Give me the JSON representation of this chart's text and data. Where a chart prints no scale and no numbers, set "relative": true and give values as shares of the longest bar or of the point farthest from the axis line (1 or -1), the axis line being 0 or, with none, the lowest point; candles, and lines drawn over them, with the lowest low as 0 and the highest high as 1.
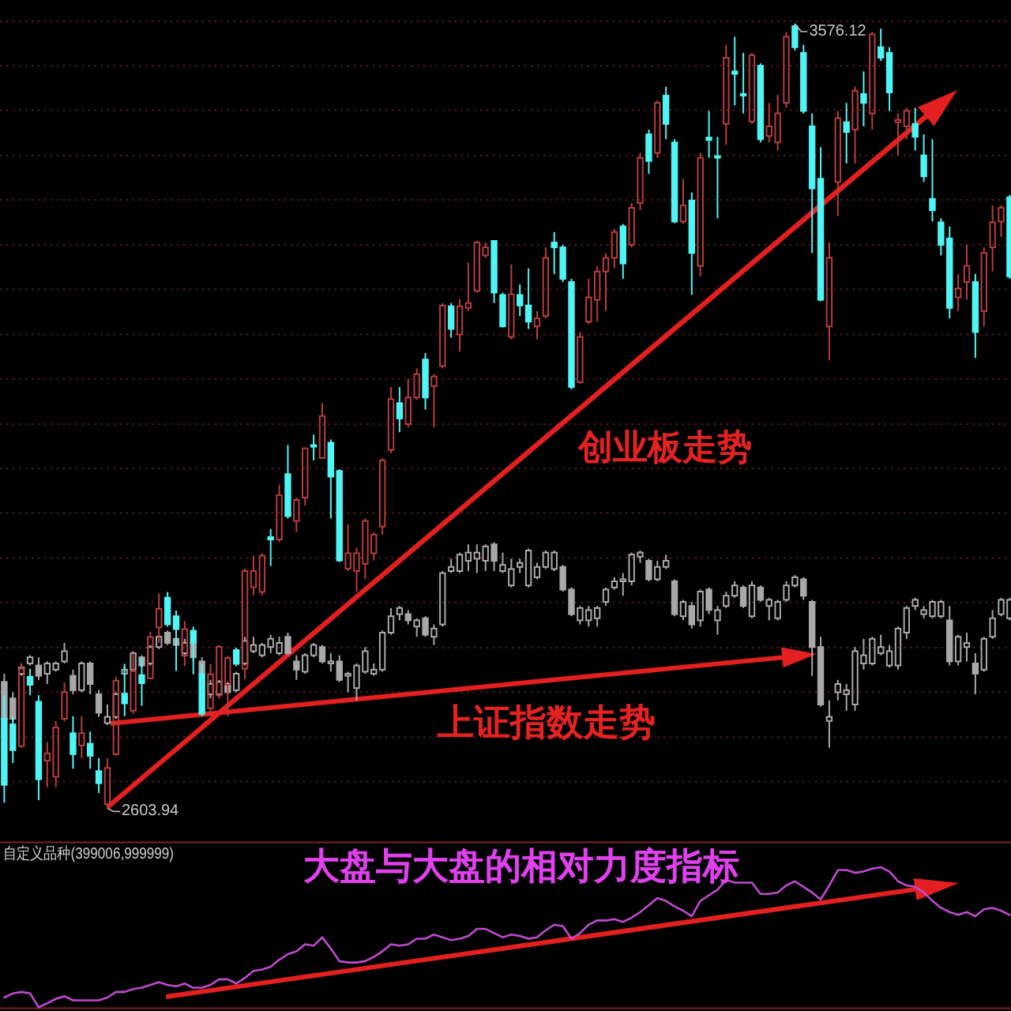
{
  "chart_data": [
    {
      "type": "candlestick",
      "categories": [
        null,
        null,
        null,
        null,
        null,
        null,
        null,
        null,
        null,
        null,
        null,
        null,
        null,
        null,
        null,
        null,
        null,
        null,
        null,
        null,
        null,
        null,
        null,
        null,
        null,
        null,
        null,
        null,
        null,
        null,
        null,
        null,
        null,
        null,
        null,
        null,
        null,
        null,
        null,
        null,
        null,
        null,
        null,
        null,
        null,
        null,
        null,
        null,
        null,
        null,
        null,
        null,
        null,
        null,
        null,
        null,
        null,
        null,
        null,
        null,
        null,
        null,
        null,
        null,
        null,
        null,
        null,
        null,
        null,
        null,
        null,
        null,
        null,
        null,
        null,
        null,
        null,
        null,
        null,
        null,
        null,
        null,
        null,
        null,
        null,
        null,
        null,
        null,
        null,
        null,
        null,
        null,
        null,
        null,
        null,
        null,
        null,
        null,
        null,
        null,
        null,
        null,
        null,
        null,
        null,
        null,
        null,
        null,
        null,
        null,
        null,
        null,
        null,
        null,
        null,
        null,
        null,
        null
      ],
      "ohlc": [
        [
          2715,
          2744,
          2611,
          2633
        ],
        [
          2708,
          2718,
          2660,
          2676
        ],
        [
          2681,
          2783,
          2679,
          2777
        ],
        [
          2767,
          2777,
          2744,
          2757
        ],
        [
          2736,
          2744,
          2614,
          2640
        ],
        [
          2663,
          2686,
          2630,
          2672
        ],
        [
          2643,
          2712,
          2630,
          2704
        ],
        [
          2715,
          2760,
          2712,
          2748
        ],
        [
          2697,
          2718,
          2653,
          2671
        ],
        [
          2682,
          2718,
          2666,
          2697
        ],
        [
          2684,
          2699,
          2653,
          2669
        ],
        [
          2650,
          2666,
          2623,
          2635
        ],
        [
          2609,
          2666,
          2603.94,
          2654
        ],
        [
          2671,
          2767,
          2669,
          2762
        ],
        [
          2746,
          2783,
          2718,
          2734
        ],
        [
          2725,
          2796,
          2721,
          2774
        ],
        [
          2769,
          2790,
          2731,
          2759
        ],
        [
          2765,
          2823,
          2764,
          2816
        ],
        [
          2828,
          2870,
          2809,
          2851
        ],
        [
          2865,
          2872,
          2829,
          2832
        ],
        [
          2842,
          2849,
          2774,
          2826
        ],
        [
          2793,
          2836,
          2780,
          2826
        ],
        [
          2824,
          2829,
          2770,
          2809
        ],
        [
          2770,
          2783,
          2718,
          2721
        ],
        [
          2728,
          2783,
          2718,
          2770
        ],
        [
          2744,
          2806,
          2740,
          2804
        ],
        [
          2757,
          2793,
          2718,
          2790
        ],
        [
          2800,
          2803,
          2780,
          2783
        ],
        [
          2777,
          2901,
          2764,
          2898
        ],
        [
          2878,
          2917,
          2868,
          2898
        ],
        [
          2872,
          2920,
          2868,
          2917
        ],
        [
          2940,
          2950,
          2904,
          2937
        ],
        [
          2937,
          3005,
          2934,
          2992
        ],
        [
          3018,
          3054,
          2963,
          2966
        ],
        [
          2960,
          2989,
          2946,
          2986
        ],
        [
          2989,
          3051,
          2979,
          3050
        ],
        [
          3054,
          3067,
          3035,
          3052
        ],
        [
          3038,
          3106,
          3037,
          3090
        ],
        [
          3057,
          3061,
          2963,
          3015
        ],
        [
          3022,
          3024,
          2909,
          2911
        ],
        [
          2901,
          2956,
          2898,
          2920
        ],
        [
          2898,
          2927,
          2872,
          2920
        ],
        [
          2907,
          2963,
          2888,
          2960
        ],
        [
          2920,
          2946,
          2911,
          2943
        ],
        [
          2953,
          3038,
          2943,
          3035
        ],
        [
          3048,
          3126,
          3044,
          3111
        ],
        [
          3106,
          3126,
          3070,
          3087
        ],
        [
          3080,
          3136,
          3076,
          3113
        ],
        [
          3113,
          3149,
          3110,
          3142
        ],
        [
          3160,
          3168,
          3098,
          3113
        ],
        [
          3127,
          3142,
          3076,
          3139
        ],
        [
          3152,
          3230,
          3149,
          3227
        ],
        [
          3226,
          3230,
          3187,
          3198
        ],
        [
          3191,
          3235,
          3170,
          3226
        ],
        [
          3224,
          3280,
          3220,
          3230
        ],
        [
          3245,
          3307,
          3243,
          3305
        ],
        [
          3289,
          3305,
          3286,
          3299
        ],
        [
          3307,
          3308,
          3230,
          3243
        ],
        [
          3240,
          3243,
          3200,
          3201
        ],
        [
          3188,
          3278,
          3185,
          3241
        ],
        [
          3240,
          3253,
          3214,
          3227
        ],
        [
          3227,
          3273,
          3198,
          3207
        ],
        [
          3201,
          3220,
          3185,
          3211
        ],
        [
          3214,
          3299,
          3211,
          3286
        ],
        [
          3305,
          3318,
          3266,
          3299
        ],
        [
          3299,
          3302,
          3256,
          3260
        ],
        [
          3256,
          3260,
          3123,
          3126
        ],
        [
          3132,
          3194,
          3130,
          3188
        ],
        [
          3207,
          3260,
          3204,
          3237
        ],
        [
          3234,
          3276,
          3207,
          3269
        ],
        [
          3269,
          3292,
          3220,
          3286
        ],
        [
          3286,
          3322,
          3273,
          3318
        ],
        [
          3325,
          3328,
          3260,
          3279
        ],
        [
          3302,
          3354,
          3299,
          3348
        ],
        [
          3354,
          3416,
          3345,
          3410
        ],
        [
          3439,
          3445,
          3390,
          3406
        ],
        [
          3416,
          3481,
          3410,
          3478
        ],
        [
          3487,
          3498,
          3433,
          3452
        ],
        [
          3429,
          3433,
          3329,
          3331
        ],
        [
          3331,
          3384,
          3328,
          3351
        ],
        [
          3357,
          3367,
          3240,
          3292
        ],
        [
          3276,
          3416,
          3263,
          3410
        ],
        [
          3435,
          3468,
          3410,
          3432
        ],
        [
          3412,
          3436,
          3335,
          3410
        ],
        [
          3452,
          3550,
          3426,
          3534
        ],
        [
          3517,
          3560,
          3475,
          3514
        ],
        [
          3489,
          3540,
          3465,
          3487
        ],
        [
          3455,
          3540,
          3452,
          3537
        ],
        [
          3524,
          3527,
          3429,
          3433
        ],
        [
          3437,
          3478,
          3429,
          3449
        ],
        [
          3429,
          3488,
          3419,
          3465
        ],
        [
          3478,
          3566,
          3472,
          3560
        ],
        [
          3573,
          3576.12,
          3543,
          3547
        ],
        [
          3540,
          3550,
          3465,
          3468
        ],
        [
          3449,
          3465,
          3292,
          3372
        ],
        [
          3384,
          3423,
          3232,
          3234
        ],
        [
          3201,
          3305,
          3159,
          3286
        ],
        [
          3380,
          3468,
          3338,
          3459
        ],
        [
          3454,
          3478,
          3403,
          3442
        ],
        [
          3445,
          3498,
          3403,
          3493
        ],
        [
          3489,
          3517,
          3449,
          3478
        ],
        [
          3465,
          3566,
          3445,
          3563
        ],
        [
          3547,
          3570,
          3530,
          3534
        ],
        [
          3540,
          3547,
          3468,
          3491
        ],
        [
          3454,
          3465,
          3413,
          3457
        ],
        [
          3449,
          3472,
          3433,
          3468
        ],
        [
          3452,
          3472,
          3419,
          3436
        ],
        [
          3413,
          3439,
          3380,
          3387
        ],
        [
          3359,
          3433,
          3331,
          3345
        ],
        [
          3330,
          3335,
          3289,
          3302
        ],
        [
          3310,
          3325,
          3211,
          3224
        ],
        [
          3237,
          3266,
          3220,
          3248
        ],
        [
          3256,
          3302,
          3234,
          3276
        ],
        [
          3256,
          3266,
          3162,
          3194
        ],
        [
          3220,
          3299,
          3201,
          3292
        ],
        [
          3299,
          3351,
          3269,
          3330
        ],
        [
          3331,
          3351,
          3312,
          3348
        ],
        [
          3361,
          3364,
          3260,
          3263
        ]
      ],
      "colors": [
        "#4ff5f5",
        "#4ff5f5",
        "#b83c3c",
        "#4ff5f5",
        "#4ff5f5",
        "#b83c3c",
        "#b83c3c",
        "#b83c3c",
        "#4ff5f5",
        "#b83c3c",
        "#4ff5f5",
        "#4ff5f5",
        "#b83c3c",
        "#b83c3c",
        "#4ff5f5",
        "#b83c3c",
        "#4ff5f5",
        "#b83c3c",
        "#b83c3c",
        "#4ff5f5",
        "#4ff5f5",
        "#b83c3c",
        "#4ff5f5",
        "#4ff5f5",
        "#b83c3c",
        "#b83c3c",
        "#b83c3c",
        "#4ff5f5",
        "#b83c3c",
        "#b83c3c",
        "#b83c3c",
        "#4ff5f5",
        "#b83c3c",
        "#4ff5f5",
        "#b83c3c",
        "#b83c3c",
        "#4ff5f5",
        "#b83c3c",
        "#4ff5f5",
        "#4ff5f5",
        "#b83c3c",
        "#b83c3c",
        "#b83c3c",
        "#b83c3c",
        "#b83c3c",
        "#b83c3c",
        "#4ff5f5",
        "#b83c3c",
        "#b83c3c",
        "#4ff5f5",
        "#b83c3c",
        "#b83c3c",
        "#4ff5f5",
        "#b83c3c",
        "#b83c3c",
        "#b83c3c",
        "#b83c3c",
        "#4ff5f5",
        "#4ff5f5",
        "#b83c3c",
        "#4ff5f5",
        "#4ff5f5",
        "#b83c3c",
        "#b83c3c",
        "#4ff5f5",
        "#4ff5f5",
        "#4ff5f5",
        "#b83c3c",
        "#b83c3c",
        "#b83c3c",
        "#b83c3c",
        "#b83c3c",
        "#4ff5f5",
        "#b83c3c",
        "#b83c3c",
        "#4ff5f5",
        "#b83c3c",
        "#4ff5f5",
        "#4ff5f5",
        "#b83c3c",
        "#4ff5f5",
        "#b83c3c",
        "#4ff5f5",
        "#4ff5f5",
        "#b83c3c",
        "#4ff5f5",
        "#4ff5f5",
        "#b83c3c",
        "#4ff5f5",
        "#b83c3c",
        "#b83c3c",
        "#b83c3c",
        "#4ff5f5",
        "#4ff5f5",
        "#4ff5f5",
        "#4ff5f5",
        "#b83c3c",
        "#b83c3c",
        "#4ff5f5",
        "#b83c3c",
        "#4ff5f5",
        "#b83c3c",
        "#4ff5f5",
        "#4ff5f5",
        "#b83c3c",
        "#b83c3c",
        "#4ff5f5",
        "#4ff5f5",
        "#4ff5f5",
        "#4ff5f5",
        "#4ff5f5",
        "#b83c3c",
        "#b83c3c",
        "#4ff5f5",
        "#b83c3c",
        "#b83c3c",
        "#b83c3c",
        "#4ff5f5"
      ],
      "yticks": [
        {
          "value": 3579,
          "label": null
        },
        {
          "value": 3524,
          "label": null
        },
        {
          "value": 3469,
          "label": null
        },
        {
          "value": 3413,
          "label": null
        },
        {
          "value": 3358,
          "label": null
        },
        {
          "value": 3302,
          "label": null
        },
        {
          "value": 3247,
          "label": null
        },
        {
          "value": 3191,
          "label": null
        },
        {
          "value": 3136,
          "label": null
        },
        {
          "value": 3080,
          "label": null
        },
        {
          "value": 3025,
          "label": null
        },
        {
          "value": 2970,
          "label": null
        },
        {
          "value": 2914,
          "label": null
        },
        {
          "value": 2859,
          "label": null
        },
        {
          "value": 2803,
          "label": null
        },
        {
          "value": 2748,
          "label": null
        },
        {
          "value": 2692,
          "label": null
        },
        {
          "value": 2637,
          "label": null
        }
      ],
      "grid": true,
      "annotations": [
        "创业板走势",
        "3576.12",
        "2603.94"
      ]
    },
    {
      "type": "candlestick",
      "relative": true,
      "categories": [
        null,
        null,
        null,
        null,
        null,
        null,
        null,
        null,
        null,
        null,
        null,
        null,
        null,
        null,
        null,
        null,
        null,
        null,
        null,
        null,
        null,
        null,
        null,
        null,
        null,
        null,
        null,
        null,
        null,
        null,
        null,
        null,
        null,
        null,
        null,
        null,
        null,
        null,
        null,
        null,
        null,
        null,
        null,
        null,
        null,
        null,
        null,
        null,
        null,
        null,
        null,
        null,
        null,
        null,
        null,
        null,
        null,
        null,
        null,
        null,
        null,
        null,
        null,
        null,
        null,
        null,
        null,
        null,
        null,
        null,
        null,
        null,
        null,
        null,
        null,
        null,
        null,
        null,
        null,
        null,
        null,
        null,
        null,
        null,
        null,
        null,
        null,
        null,
        null,
        null,
        null,
        null,
        null,
        null,
        null,
        null,
        null,
        null,
        null,
        null,
        null,
        null,
        null,
        null,
        null,
        null,
        null,
        null,
        null,
        null,
        null,
        null,
        null,
        null,
        null,
        null,
        null,
        null
      ],
      "ohlc": [
        [
          0.32,
          0.36,
          0.13,
          0.14
        ],
        [
          0.24,
          0.27,
          0.13,
          0.14
        ],
        [
          0.36,
          0.41,
          0.35,
          0.39
        ],
        [
          0.41,
          0.45,
          0.4,
          0.44
        ],
        [
          0.4,
          0.44,
          0.33,
          0.35
        ],
        [
          0.36,
          0.42,
          0.31,
          0.41
        ],
        [
          0.38,
          0.42,
          0.37,
          0.41
        ],
        [
          0.42,
          0.51,
          0.41,
          0.47
        ],
        [
          0.35,
          0.38,
          0.26,
          0.28
        ],
        [
          0.28,
          0.42,
          0.27,
          0.41
        ],
        [
          0.41,
          0.42,
          0.26,
          0.31
        ],
        [
          0.26,
          0.28,
          0.15,
          0.17
        ],
        [
          0.12,
          0.21,
          0.11,
          0.15
        ],
        [
          0.15,
          0.27,
          0.14,
          0.26
        ],
        [
          0.36,
          0.4,
          0.35,
          0.38
        ],
        [
          0.38,
          0.47,
          0.37,
          0.46
        ],
        [
          0.44,
          0.45,
          0.39,
          0.4
        ],
        [
          0.41,
          0.5,
          0.4,
          0.49
        ],
        [
          0.49,
          0.55,
          0.48,
          0.54
        ],
        [
          0.56,
          0.57,
          0.5,
          0.51
        ],
        [
          0.53,
          0.54,
          0.49,
          0.5
        ],
        [
          0.46,
          0.53,
          0.45,
          0.51
        ],
        [
          0.51,
          0.53,
          0.42,
          0.44
        ],
        [
          0.42,
          0.44,
          0.35,
          0.36
        ],
        [
          0.26,
          0.33,
          0.24,
          0.31
        ],
        [
          0.26,
          0.33,
          0.25,
          0.32
        ],
        [
          0.31,
          0.32,
          0.26,
          0.27
        ],
        [
          0.28,
          0.37,
          0.27,
          0.36
        ],
        [
          0.41,
          0.54,
          0.4,
          0.52
        ],
        [
          0.47,
          0.54,
          0.46,
          0.5
        ],
        [
          0.45,
          0.51,
          0.44,
          0.5
        ],
        [
          0.49,
          0.55,
          0.46,
          0.53
        ],
        [
          0.46,
          0.54,
          0.45,
          0.51
        ],
        [
          0.54,
          0.56,
          0.45,
          0.46
        ],
        [
          0.42,
          0.45,
          0.33,
          0.38
        ],
        [
          0.37,
          0.46,
          0.36,
          0.45
        ],
        [
          0.45,
          0.51,
          0.44,
          0.5
        ],
        [
          0.49,
          0.5,
          0.41,
          0.42
        ],
        [
          0.41,
          0.46,
          0.37,
          0.42
        ],
        [
          0.42,
          0.45,
          0.32,
          0.33
        ],
        [
          0.35,
          0.37,
          0.27,
          0.36
        ],
        [
          0.29,
          0.41,
          0.23,
          0.4
        ],
        [
          0.37,
          0.49,
          0.36,
          0.47
        ],
        [
          0.36,
          0.41,
          0.35,
          0.38
        ],
        [
          0.38,
          0.57,
          0.37,
          0.56
        ],
        [
          0.56,
          0.68,
          0.55,
          0.64
        ],
        [
          0.65,
          0.69,
          0.62,
          0.68
        ],
        [
          0.65,
          0.67,
          0.6,
          0.62
        ],
        [
          0.59,
          0.63,
          0.54,
          0.62
        ],
        [
          0.63,
          0.64,
          0.54,
          0.55
        ],
        [
          0.54,
          0.6,
          0.5,
          0.58
        ],
        [
          0.6,
          0.86,
          0.59,
          0.85
        ],
        [
          0.86,
          0.92,
          0.85,
          0.88
        ],
        [
          0.86,
          0.95,
          0.85,
          0.94
        ],
        [
          0.91,
          0.99,
          0.86,
          0.95
        ],
        [
          0.92,
          0.99,
          0.85,
          0.95
        ],
        [
          0.91,
          0.99,
          0.86,
          0.98
        ],
        [
          0.99,
          1,
          0.86,
          0.91
        ],
        [
          0.86,
          0.95,
          0.85,
          0.89
        ],
        [
          0.79,
          0.92,
          0.78,
          0.87
        ],
        [
          0.88,
          0.92,
          0.85,
          0.9
        ],
        [
          0.79,
          0.97,
          0.78,
          0.96
        ],
        [
          0.83,
          0.9,
          0.82,
          0.88
        ],
        [
          0.88,
          0.96,
          0.87,
          0.95
        ],
        [
          0.87,
          0.96,
          0.86,
          0.95
        ],
        [
          0.88,
          0.89,
          0.76,
          0.77
        ],
        [
          0.77,
          0.78,
          0.64,
          0.65
        ],
        [
          0.62,
          0.69,
          0.6,
          0.68
        ],
        [
          0.62,
          0.69,
          0.59,
          0.67
        ],
        [
          0.63,
          0.69,
          0.59,
          0.68
        ],
        [
          0.71,
          0.78,
          0.69,
          0.77
        ],
        [
          0.78,
          0.83,
          0.77,
          0.81
        ],
        [
          0.81,
          0.85,
          0.74,
          0.82
        ],
        [
          0.81,
          0.95,
          0.79,
          0.94
        ],
        [
          0.93,
          0.96,
          0.9,
          0.95
        ],
        [
          0.91,
          0.92,
          0.81,
          0.82
        ],
        [
          0.82,
          0.91,
          0.81,
          0.88
        ],
        [
          0.88,
          0.94,
          0.87,
          0.91
        ],
        [
          0.81,
          0.82,
          0.64,
          0.65
        ],
        [
          0.64,
          0.72,
          0.62,
          0.71
        ],
        [
          0.69,
          0.71,
          0.58,
          0.6
        ],
        [
          0.62,
          0.77,
          0.59,
          0.76
        ],
        [
          0.77,
          0.78,
          0.65,
          0.67
        ],
        [
          0.62,
          0.69,
          0.55,
          0.67
        ],
        [
          0.69,
          0.76,
          0.68,
          0.74
        ],
        [
          0.74,
          0.81,
          0.73,
          0.79
        ],
        [
          0.78,
          0.79,
          0.68,
          0.69
        ],
        [
          0.64,
          0.81,
          0.63,
          0.79
        ],
        [
          0.78,
          0.79,
          0.71,
          0.72
        ],
        [
          0.69,
          0.73,
          0.62,
          0.72
        ],
        [
          0.63,
          0.72,
          0.62,
          0.71
        ],
        [
          0.72,
          0.81,
          0.71,
          0.79
        ],
        [
          0.79,
          0.84,
          0.78,
          0.83
        ],
        [
          0.82,
          0.83,
          0.72,
          0.74
        ],
        [
          0.71,
          0.72,
          0.35,
          0.49
        ],
        [
          0.49,
          0.54,
          0.2,
          0.21
        ],
        [
          0.13,
          0.23,
          0,
          0.15
        ],
        [
          0.27,
          0.33,
          0.23,
          0.31
        ],
        [
          0.26,
          0.31,
          0.18,
          0.28
        ],
        [
          0.21,
          0.49,
          0.18,
          0.47
        ],
        [
          0.41,
          0.53,
          0.38,
          0.45
        ],
        [
          0.41,
          0.54,
          0.4,
          0.53
        ],
        [
          0.46,
          0.55,
          0.45,
          0.49
        ],
        [
          0.4,
          0.5,
          0.39,
          0.47
        ],
        [
          0.4,
          0.59,
          0.38,
          0.58
        ],
        [
          0.56,
          0.69,
          0.53,
          0.68
        ],
        [
          0.69,
          0.73,
          0.67,
          0.72
        ],
        [
          0.65,
          0.69,
          0.63,
          0.67
        ],
        [
          0.64,
          0.72,
          0.63,
          0.71
        ],
        [
          0.64,
          0.72,
          0.63,
          0.71
        ],
        [
          0.62,
          0.69,
          0.4,
          0.42
        ],
        [
          0.42,
          0.55,
          0.4,
          0.54
        ],
        [
          0.49,
          0.56,
          0.42,
          0.51
        ],
        [
          0.41,
          0.46,
          0.26,
          0.36
        ],
        [
          0.38,
          0.54,
          0.37,
          0.53
        ],
        [
          0.54,
          0.67,
          0.53,
          0.63
        ],
        [
          0.65,
          0.73,
          0.64,
          0.72
        ],
        [
          0.63,
          0.73,
          0.62,
          0.72
        ]
      ],
      "color": "#a8a8a8",
      "annotations": [
        "上证指数走势"
      ]
    },
    {
      "type": "line",
      "relative": true,
      "title": "自定义品种(399006,999999)",
      "categories": [
        null,
        null,
        null,
        null,
        null,
        null,
        null,
        null,
        null,
        null,
        null,
        null,
        null,
        null,
        null,
        null,
        null,
        null,
        null,
        null,
        null,
        null,
        null,
        null,
        null,
        null,
        null,
        null,
        null,
        null,
        null,
        null,
        null,
        null,
        null,
        null,
        null,
        null,
        null,
        null,
        null,
        null,
        null,
        null,
        null,
        null,
        null,
        null,
        null,
        null,
        null,
        null,
        null,
        null,
        null,
        null,
        null,
        null,
        null,
        null,
        null,
        null,
        null,
        null,
        null,
        null,
        null,
        null,
        null,
        null,
        null,
        null,
        null,
        null,
        null,
        null,
        null,
        null,
        null,
        null,
        null,
        null,
        null,
        null,
        null,
        null,
        null,
        null,
        null,
        null,
        null,
        null,
        null,
        null,
        null,
        null,
        null,
        null,
        null,
        null,
        null,
        null,
        null,
        null,
        null,
        null,
        null,
        null,
        null,
        null,
        null,
        null,
        null,
        null,
        null,
        null,
        null,
        null
      ],
      "values": [
        0.07,
        0.1,
        0.11,
        0.1,
        0,
        0.03,
        0.06,
        0.08,
        0.05,
        0.05,
        0.05,
        0.05,
        0.07,
        0.11,
        0.11,
        0.13,
        0.14,
        0.16,
        0.18,
        0.16,
        0.15,
        0.17,
        0.14,
        0.14,
        0.16,
        0.2,
        0.2,
        0.17,
        0.21,
        0.26,
        0.27,
        0.29,
        0.34,
        0.38,
        0.4,
        0.45,
        0.44,
        0.5,
        0.42,
        0.33,
        0.32,
        0.32,
        0.33,
        0.36,
        0.4,
        0.45,
        0.44,
        0.45,
        0.49,
        0.49,
        0.52,
        0.5,
        0.48,
        0.49,
        0.51,
        0.56,
        0.56,
        0.53,
        0.5,
        0.52,
        0.51,
        0.49,
        0.5,
        0.55,
        0.59,
        0.58,
        0.49,
        0.53,
        0.59,
        0.62,
        0.62,
        0.63,
        0.61,
        0.64,
        0.68,
        0.73,
        0.78,
        0.76,
        0.72,
        0.69,
        0.65,
        0.76,
        0.8,
        0.84,
        0.91,
        0.89,
        0.89,
        0.89,
        0.81,
        0.81,
        0.82,
        0.87,
        0.9,
        0.86,
        0.82,
        0.77,
        0.87,
        0.98,
        0.98,
        0.96,
        0.97,
        0.99,
        1,
        0.97,
        0.9,
        0.87,
        0.86,
        0.82,
        0.76,
        0.71,
        0.68,
        0.66,
        0.68,
        0.65,
        0.7,
        0.71,
        0.69,
        0.66
      ],
      "color": "#c04ad0",
      "annotations": [
        "大盘与大盘的相对力度指标"
      ]
    }
  ]
}
